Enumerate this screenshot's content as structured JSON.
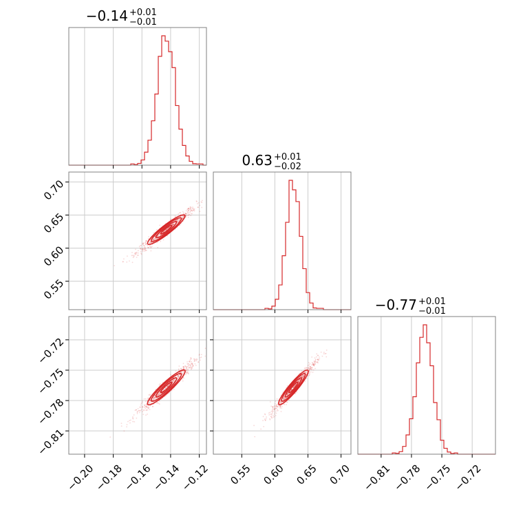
{
  "chart_data": {
    "type": "corner",
    "color": "#d62728",
    "grid": true,
    "parameters": [
      {
        "median": "−0.14",
        "plus": "+0.01",
        "minus": "−0.01",
        "center": -0.143,
        "sd": 0.0065,
        "range": [
          -0.211,
          -0.115
        ],
        "ticks": [
          -0.2,
          -0.18,
          -0.16,
          -0.14,
          -0.12
        ],
        "tick_labels": [
          "−0.20",
          "−0.18",
          "−0.16",
          "−0.14",
          "−0.12"
        ]
      },
      {
        "median": "0.63",
        "plus": "+0.01",
        "minus": "−0.02",
        "center": 0.628,
        "sd": 0.011,
        "range": [
          0.507,
          0.715
        ],
        "ticks": [
          0.55,
          0.6,
          0.65,
          0.7
        ],
        "tick_labels": [
          "0.55",
          "0.60",
          "0.65",
          "0.70"
        ]
      },
      {
        "median": "−0.77",
        "plus": "+0.01",
        "minus": "−0.01",
        "center": -0.767,
        "sd": 0.0085,
        "range": [
          -0.833,
          -0.697
        ],
        "ticks": [
          -0.81,
          -0.78,
          -0.75,
          -0.72
        ],
        "tick_labels": [
          "−0.81",
          "−0.78",
          "−0.75",
          "−0.72"
        ]
      }
    ],
    "correlation": 0.97
  }
}
